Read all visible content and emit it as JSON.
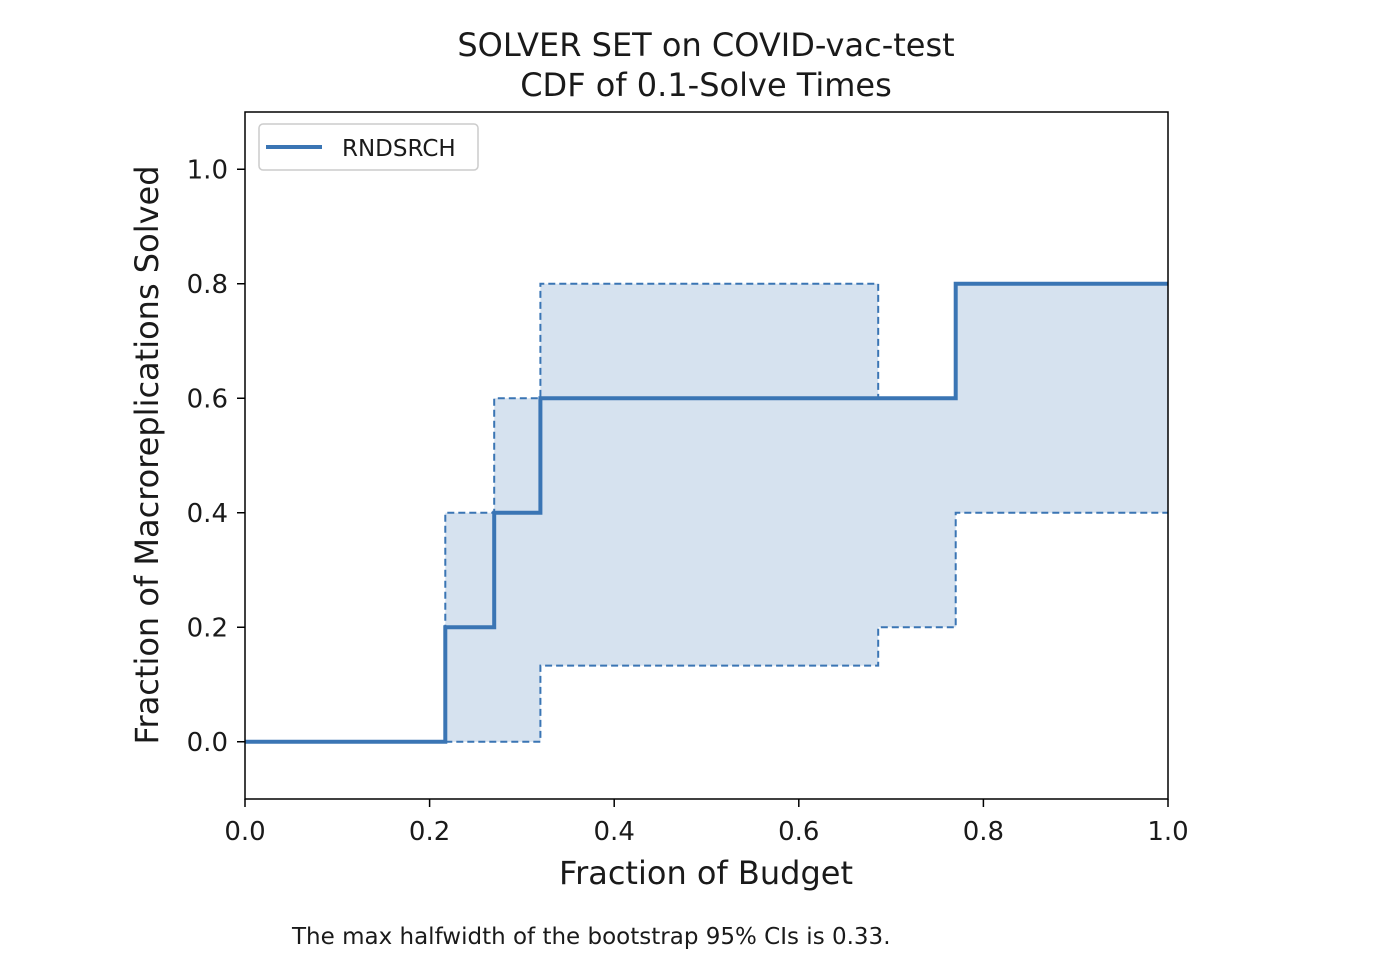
{
  "chart_data": {
    "type": "line",
    "title": "SOLVER SET on COVID-vac-test",
    "subtitle": "CDF of 0.1-Solve Times",
    "xlabel": "Fraction of Budget",
    "ylabel": "Fraction of Macroreplications Solved",
    "xlim": [
      0.0,
      1.0
    ],
    "ylim": [
      -0.1,
      1.1
    ],
    "x_ticks": [
      "0.0",
      "0.2",
      "0.4",
      "0.6",
      "0.8",
      "1.0"
    ],
    "y_ticks": [
      "0.0",
      "0.2",
      "0.4",
      "0.6",
      "0.8",
      "1.0"
    ],
    "grid": false,
    "legend_position": "top-left",
    "series": [
      {
        "name": "RNDSRCH",
        "color": "#3a75b4",
        "style": "solid-step",
        "x": [
          0.0,
          0.217,
          0.217,
          0.27,
          0.27,
          0.32,
          0.32,
          0.77,
          0.77,
          1.0
        ],
        "y": [
          0.0,
          0.0,
          0.2,
          0.2,
          0.4,
          0.4,
          0.6,
          0.6,
          0.8,
          0.8
        ]
      }
    ],
    "ci_band": {
      "label": "bootstrap 95% CI",
      "fill_color": "#d6e2ef",
      "edge_color": "#3a75b4",
      "upper": {
        "x": [
          0.217,
          0.217,
          0.27,
          0.27,
          0.32,
          0.32,
          0.686,
          0.686,
          0.77,
          0.77,
          1.0
        ],
        "y": [
          0.0,
          0.4,
          0.4,
          0.6,
          0.6,
          0.8,
          0.8,
          0.6,
          0.6,
          0.8,
          0.8
        ]
      },
      "lower": {
        "x": [
          0.217,
          0.32,
          0.32,
          0.686,
          0.686,
          0.77,
          0.77,
          1.0
        ],
        "y": [
          0.0,
          0.0,
          0.133,
          0.133,
          0.2,
          0.2,
          0.4,
          0.4
        ]
      }
    },
    "caption": "The max halfwidth of the bootstrap 95% CIs is 0.33."
  }
}
